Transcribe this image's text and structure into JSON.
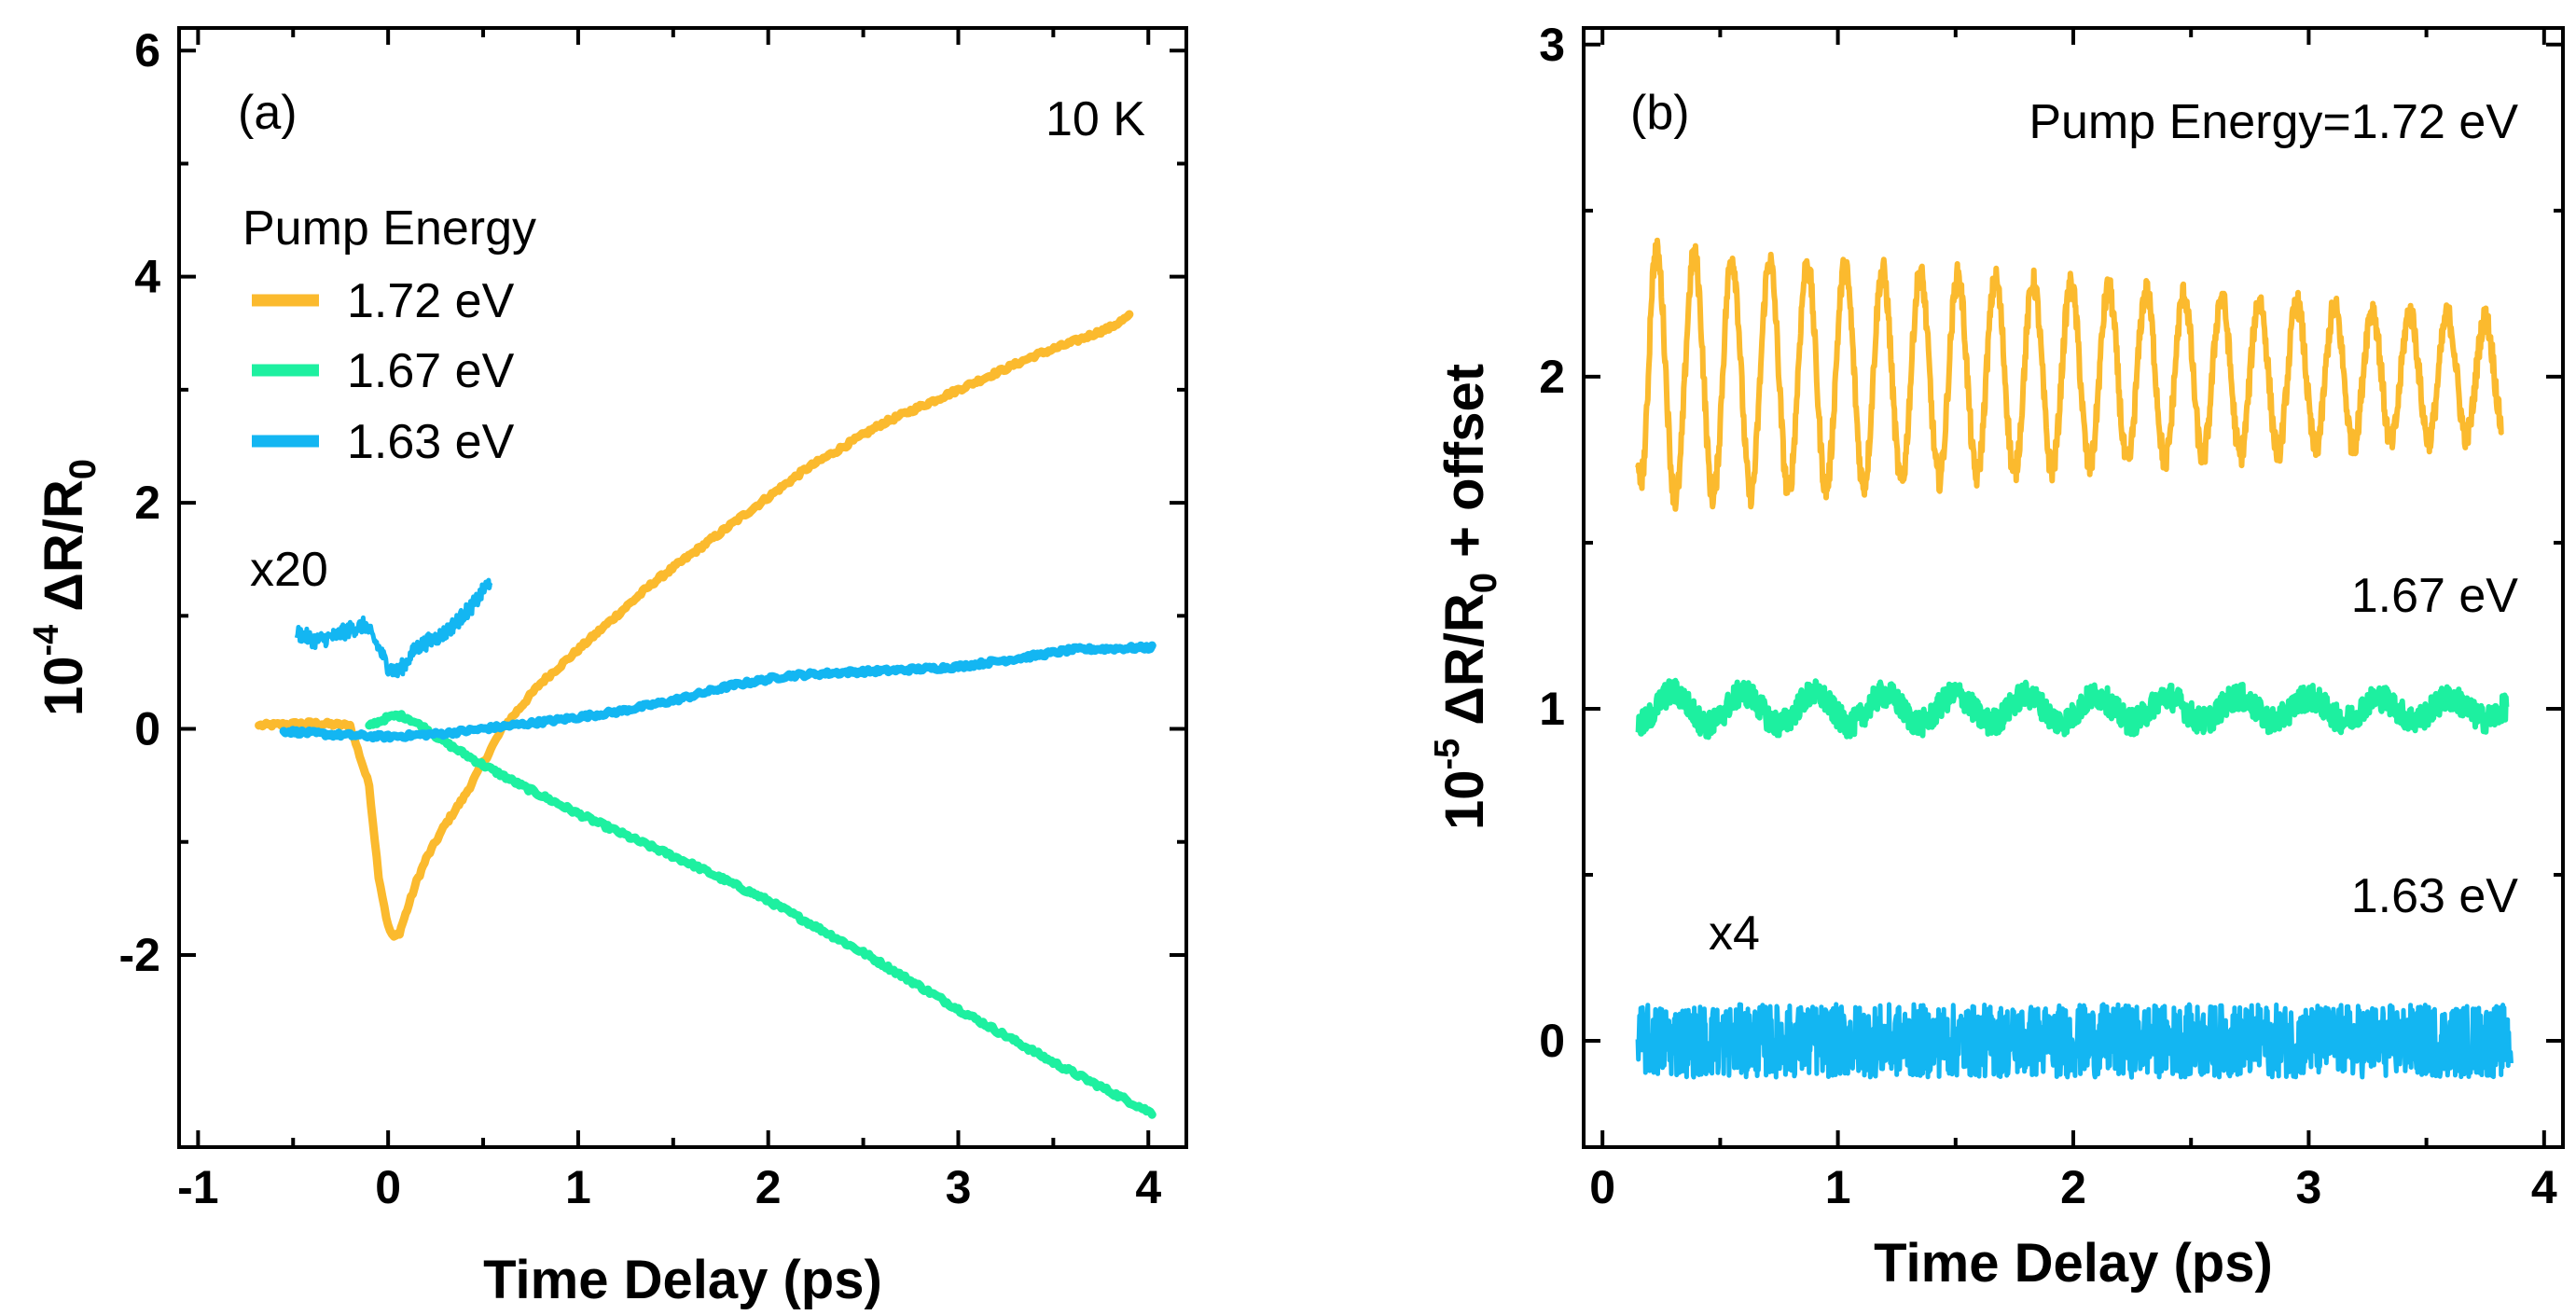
{
  "chart_data": [
    {
      "type": "line",
      "panel_label": "(a)",
      "temperature_label": "10 K",
      "xlabel": "Time Delay (ps)",
      "ylabel_base": "10",
      "ylabel_exp": "-4",
      "ylabel_main": " ΔR/R",
      "ylabel_sub": "0",
      "xlim": [
        -1.1,
        4.2
      ],
      "ylim": [
        -3.7,
        6.2
      ],
      "xticks": [
        -1,
        0,
        1,
        2,
        3,
        4
      ],
      "xtick_labels": [
        "-1",
        "0",
        "1",
        "2",
        "3",
        "4"
      ],
      "yticks": [
        -2,
        0,
        2,
        4,
        6
      ],
      "ytick_labels": [
        "-2",
        "0",
        "2",
        "4",
        "6"
      ],
      "legend_title": "Pump Energy",
      "legend_position": "upper-left",
      "inset_annotation": "x20",
      "series": [
        {
          "name": "1.72 eV",
          "color": "#FBBA2E",
          "x": [
            -0.68,
            -0.4,
            -0.2,
            -0.1,
            -0.05,
            0.0,
            0.03,
            0.06,
            0.1,
            0.15,
            0.2,
            0.3,
            0.4,
            0.5,
            0.6,
            0.7,
            0.8,
            0.9,
            1.0,
            1.2,
            1.4,
            1.6,
            1.8,
            2.0,
            2.2,
            2.4,
            2.6,
            2.8,
            3.0,
            3.2,
            3.4,
            3.6,
            3.8,
            3.9
          ],
          "y": [
            0.03,
            0.05,
            0.03,
            -0.5,
            -1.3,
            -1.75,
            -1.85,
            -1.8,
            -1.6,
            -1.35,
            -1.15,
            -0.85,
            -0.6,
            -0.3,
            0.0,
            0.2,
            0.4,
            0.55,
            0.7,
            1.0,
            1.3,
            1.55,
            1.8,
            2.05,
            2.3,
            2.5,
            2.7,
            2.85,
            3.0,
            3.15,
            3.3,
            3.42,
            3.55,
            3.65
          ]
        },
        {
          "name": "1.67 eV",
          "color": "#1DF0A0",
          "x": [
            -0.1,
            0.0,
            0.05,
            0.1,
            0.2,
            0.3,
            0.5,
            0.7,
            1.0,
            1.3,
            1.6,
            2.0,
            2.5,
            3.0,
            3.5,
            4.02
          ],
          "y": [
            0.03,
            0.1,
            0.12,
            0.1,
            0.0,
            -0.12,
            -0.32,
            -0.5,
            -0.75,
            -0.98,
            -1.2,
            -1.52,
            -1.98,
            -2.48,
            -2.95,
            -3.4
          ]
        },
        {
          "name": "1.63 eV",
          "color": "#13B6F2",
          "x": [
            -0.55,
            -0.3,
            0.0,
            0.3,
            0.6,
            0.9,
            1.2,
            1.5,
            1.8,
            2.1,
            2.4,
            2.7,
            3.0,
            3.3,
            3.6,
            4.02
          ],
          "y": [
            -0.02,
            -0.05,
            -0.07,
            -0.04,
            0.02,
            0.08,
            0.15,
            0.25,
            0.38,
            0.47,
            0.5,
            0.52,
            0.55,
            0.62,
            0.7,
            0.72
          ]
        }
      ],
      "inset_series": {
        "name": "1.63 eV x20",
        "color": "#13B6F2",
        "x": [
          -0.48,
          -0.38,
          -0.28,
          -0.2,
          -0.12,
          -0.06,
          0.0,
          0.05,
          0.1,
          0.15,
          0.22,
          0.3,
          0.38,
          0.46,
          0.54
        ],
        "y": [
          0.85,
          0.78,
          0.82,
          0.88,
          0.92,
          0.75,
          0.55,
          0.5,
          0.6,
          0.72,
          0.78,
          0.85,
          0.98,
          1.12,
          1.32
        ]
      }
    },
    {
      "type": "line",
      "panel_label": "(b)",
      "title_annotation": "Pump Energy=1.72 eV",
      "xlabel": "Time Delay (ps)",
      "ylabel_base": "10",
      "ylabel_exp": "-5",
      "ylabel_main": " ΔR/R",
      "ylabel_sub": "0",
      "ylabel_tail": " + offset",
      "xlim": [
        -0.08,
        4.08
      ],
      "ylim": [
        -0.32,
        3.05
      ],
      "xticks": [
        0,
        1,
        2,
        3,
        4
      ],
      "xtick_labels": [
        "0",
        "1",
        "2",
        "3",
        "4"
      ],
      "yticks": [
        0,
        1,
        2,
        3
      ],
      "ytick_labels": [
        "0",
        "1",
        "2",
        "3"
      ],
      "series": [
        {
          "name": "1.72 eV",
          "color": "#FBBA2E",
          "x_start": 0.15,
          "x_end": 3.82,
          "offset": 2.0,
          "start_value": 1.7,
          "amplitude_start": 0.38,
          "amplitude_end": 0.17,
          "period": 0.16,
          "noise": 0.04
        },
        {
          "name": "1.67 eV",
          "label": "1.67 eV",
          "color": "#1DF0A0",
          "x_start": 0.15,
          "x_end": 3.84,
          "offset": 1.0,
          "amplitude_start": 0.05,
          "amplitude_end": 0.03,
          "period": 0.3,
          "noise": 0.04
        },
        {
          "name": "1.63 eV",
          "label": "1.63 eV",
          "annotation": "x4",
          "color": "#13B6F2",
          "x_start": 0.15,
          "x_end": 3.86,
          "offset": 0.0,
          "amplitude_start": 0.0,
          "amplitude_end": 0.0,
          "period": 0.2,
          "noise": 0.11
        }
      ]
    }
  ]
}
